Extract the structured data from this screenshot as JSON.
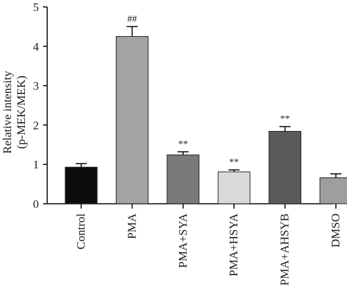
{
  "chart_data": {
    "type": "bar",
    "title": "",
    "xlabel": "",
    "ylabel_line1": "Relative intensity",
    "ylabel_line2": "(p-MEK/MEK)",
    "ylim": [
      0,
      5
    ],
    "yticks": [
      "0",
      "1",
      "2",
      "3",
      "4",
      "5"
    ],
    "grid": false,
    "legend": "none",
    "categories": [
      "Control",
      "PMA",
      "PMA+SYA",
      "PMA+HSYA",
      "PMA+AHSYB",
      "DMSO"
    ],
    "values": [
      0.93,
      4.25,
      1.24,
      0.81,
      1.84,
      0.66
    ],
    "errors": [
      0.09,
      0.25,
      0.08,
      0.05,
      0.12,
      0.1
    ],
    "significance": [
      "",
      "##",
      "**",
      "**",
      "**",
      ""
    ],
    "colors": [
      "#0d0d0d",
      "#a3a3a3",
      "#7a7a7a",
      "#d9d9d9",
      "#5a5a5a",
      "#9e9e9e"
    ]
  }
}
